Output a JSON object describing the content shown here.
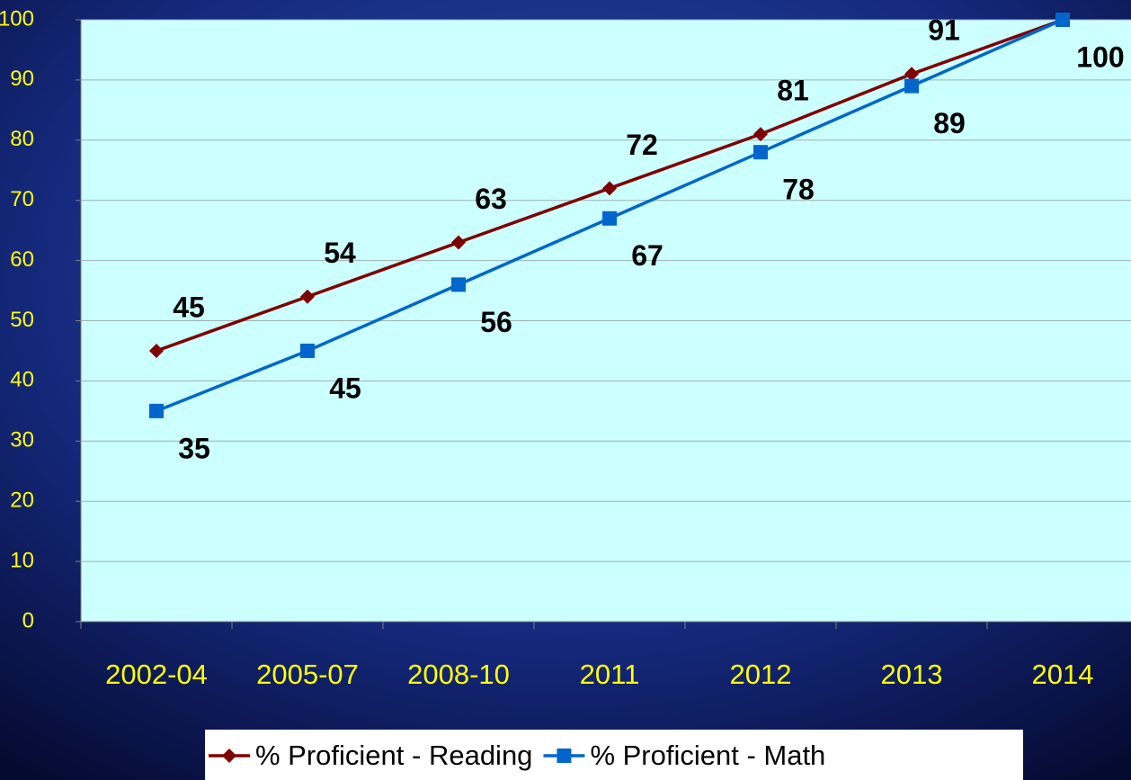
{
  "chart_data": {
    "type": "line",
    "categories": [
      "2002-04",
      "2005-07",
      "2008-10",
      "2011",
      "2012",
      "2013",
      "2014"
    ],
    "series": [
      {
        "name": "% Proficient - Reading",
        "color": "#800000",
        "marker": "diamond",
        "values": [
          45,
          54,
          63,
          72,
          81,
          91,
          100
        ],
        "value_labels": [
          "45",
          "54",
          "63",
          "72",
          "81",
          "91",
          null
        ]
      },
      {
        "name": "% Proficient - Math",
        "color": "#0066cc",
        "marker": "square",
        "values": [
          35,
          45,
          56,
          67,
          78,
          89,
          100
        ],
        "value_labels": [
          "35",
          "45",
          "56",
          "67",
          "78",
          "89",
          "100"
        ]
      }
    ],
    "ylim": [
      0,
      100
    ],
    "yticks": [
      0,
      10,
      20,
      30,
      40,
      50,
      60,
      70,
      80,
      90,
      100
    ],
    "grid": true,
    "legend": "bottom"
  }
}
